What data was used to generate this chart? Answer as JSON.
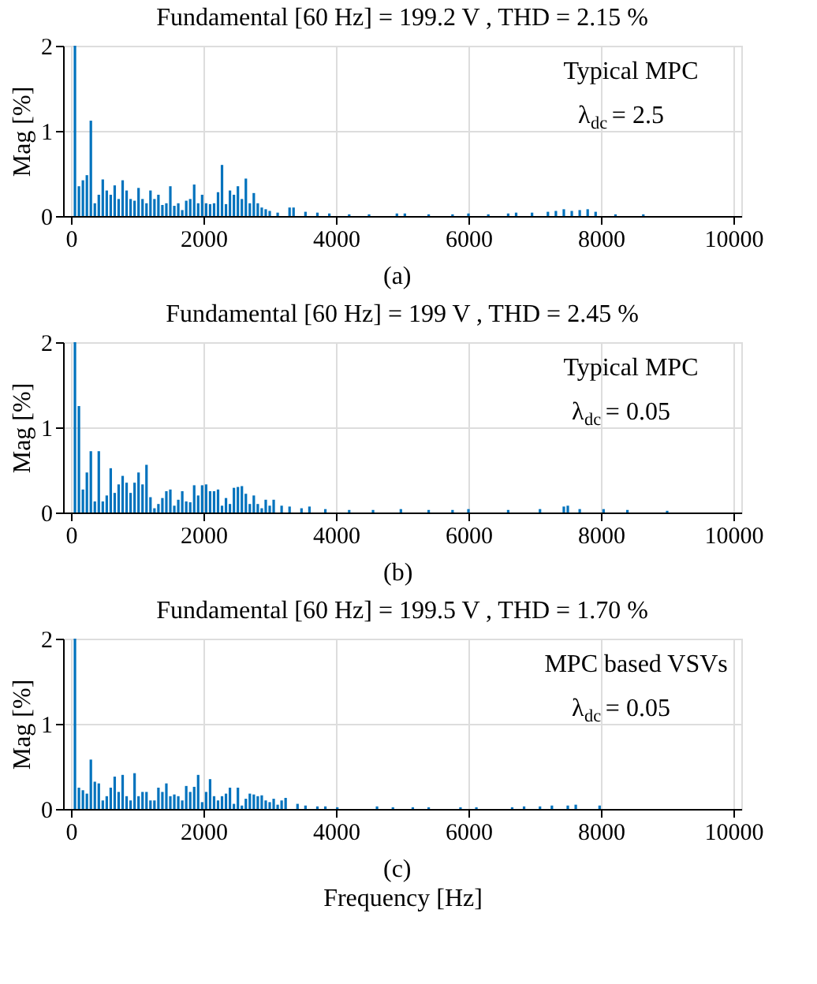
{
  "chart_data": [
    {
      "type": "bar",
      "title": "Fundamental [60 Hz] = 199.2 V , THD = 2.15 %",
      "ylabel": "Mag [%]",
      "annotations": [
        "Typical MPC",
        "λ$_{dc}$ = 2.5",
        "(a)"
      ],
      "color": "#0072bd",
      "grid": true,
      "xlim": [
        0,
        10000
      ],
      "xticks": [
        0,
        2000,
        4000,
        6000,
        8000,
        10000
      ],
      "ylim": [
        0,
        2
      ],
      "yticks": [
        0,
        1,
        2
      ],
      "x": [
        60,
        120,
        180,
        240,
        300,
        360,
        420,
        480,
        540,
        600,
        660,
        720,
        780,
        840,
        900,
        960,
        1020,
        1080,
        1140,
        1200,
        1260,
        1320,
        1380,
        1440,
        1500,
        1560,
        1620,
        1680,
        1740,
        1800,
        1860,
        1920,
        1980,
        2040,
        2100,
        2160,
        2220,
        2280,
        2340,
        2400,
        2460,
        2520,
        2580,
        2640,
        2700,
        2760,
        2820,
        2880,
        2940,
        3000,
        3120,
        3300,
        3360,
        3540,
        3720,
        3900,
        4200,
        4500,
        4920,
        5040,
        5400,
        5760,
        6000,
        6300,
        6600,
        6720,
        6960,
        7200,
        7320,
        7440,
        7560,
        7680,
        7800,
        7920,
        8220,
        8640
      ],
      "values": [
        2,
        0.35,
        0.42,
        0.48,
        1.12,
        0.15,
        0.25,
        0.43,
        0.3,
        0.25,
        0.36,
        0.2,
        0.42,
        0.3,
        0.2,
        0.18,
        0.33,
        0.2,
        0.15,
        0.3,
        0.2,
        0.25,
        0.13,
        0.15,
        0.35,
        0.12,
        0.15,
        0.07,
        0.18,
        0.2,
        0.37,
        0.15,
        0.25,
        0.15,
        0.14,
        0.15,
        0.28,
        0.6,
        0.14,
        0.3,
        0.25,
        0.35,
        0.2,
        0.44,
        0.15,
        0.27,
        0.15,
        0.1,
        0.08,
        0.06,
        0.04,
        0.1,
        0.1,
        0.05,
        0.04,
        0.03,
        0.02,
        0.02,
        0.03,
        0.03,
        0.02,
        0.02,
        0.03,
        0.02,
        0.03,
        0.04,
        0.04,
        0.05,
        0.06,
        0.08,
        0.06,
        0.07,
        0.08,
        0.05,
        0.02,
        0.02
      ]
    },
    {
      "type": "bar",
      "title": "Fundamental [60 Hz] = 199 V , THD = 2.45 %",
      "ylabel": "Mag [%]",
      "annotations": [
        "Typical MPC",
        "λ$_{dc}$ = 0.05",
        "(b)"
      ],
      "color": "#0072bd",
      "grid": true,
      "xlim": [
        0,
        10000
      ],
      "xticks": [
        0,
        2000,
        4000,
        6000,
        8000,
        10000
      ],
      "ylim": [
        0,
        2
      ],
      "yticks": [
        0,
        1,
        2
      ],
      "x": [
        60,
        120,
        180,
        240,
        300,
        360,
        420,
        480,
        540,
        600,
        660,
        720,
        780,
        840,
        900,
        960,
        1020,
        1080,
        1140,
        1200,
        1260,
        1320,
        1380,
        1440,
        1500,
        1560,
        1620,
        1680,
        1740,
        1800,
        1860,
        1920,
        1980,
        2040,
        2100,
        2160,
        2220,
        2280,
        2340,
        2400,
        2460,
        2520,
        2580,
        2640,
        2700,
        2760,
        2820,
        2880,
        2940,
        3000,
        3060,
        3180,
        3300,
        3480,
        3600,
        3840,
        4200,
        4560,
        4980,
        5400,
        5760,
        6000,
        6600,
        7080,
        7440,
        7500,
        7680,
        8040,
        8400,
        9000
      ],
      "values": [
        2,
        1.25,
        0.27,
        0.47,
        0.72,
        0.13,
        0.72,
        0.13,
        0.2,
        0.52,
        0.23,
        0.33,
        0.43,
        0.35,
        0.23,
        0.35,
        0.47,
        0.33,
        0.56,
        0.18,
        0.05,
        0.1,
        0.17,
        0.25,
        0.27,
        0.08,
        0.15,
        0.25,
        0.13,
        0.12,
        0.32,
        0.2,
        0.32,
        0.33,
        0.25,
        0.25,
        0.27,
        0.08,
        0.17,
        0.1,
        0.29,
        0.3,
        0.31,
        0.22,
        0.1,
        0.2,
        0.1,
        0.05,
        0.15,
        0.08,
        0.15,
        0.08,
        0.07,
        0.05,
        0.07,
        0.04,
        0.03,
        0.03,
        0.04,
        0.03,
        0.03,
        0.04,
        0.03,
        0.04,
        0.07,
        0.08,
        0.04,
        0.04,
        0.03,
        0.02
      ]
    },
    {
      "type": "bar",
      "title": "Fundamental [60 Hz] = 199.5 V , THD = 1.70 %",
      "xlabel": "Frequency [Hz]",
      "ylabel": "Mag [%]",
      "annotations": [
        "MPC based VSVs",
        "λ$_{dc}$ = 0.05",
        "(c)"
      ],
      "color": "#0072bd",
      "grid": true,
      "xlim": [
        0,
        10000
      ],
      "xticks": [
        0,
        2000,
        4000,
        6000,
        8000,
        10000
      ],
      "ylim": [
        0,
        2
      ],
      "yticks": [
        0,
        1,
        2
      ],
      "x": [
        60,
        120,
        180,
        240,
        300,
        360,
        420,
        480,
        540,
        600,
        660,
        720,
        780,
        840,
        900,
        960,
        1020,
        1080,
        1140,
        1200,
        1260,
        1320,
        1380,
        1440,
        1500,
        1560,
        1620,
        1680,
        1740,
        1800,
        1860,
        1920,
        1980,
        2040,
        2100,
        2160,
        2220,
        2280,
        2340,
        2400,
        2460,
        2520,
        2580,
        2640,
        2700,
        2760,
        2820,
        2880,
        2940,
        3000,
        3060,
        3120,
        3180,
        3240,
        3420,
        3540,
        3720,
        3840,
        4020,
        4620,
        4860,
        5160,
        5400,
        5880,
        6120,
        6660,
        6840,
        7080,
        7260,
        7500,
        7620,
        7980
      ],
      "values": [
        2,
        0.25,
        0.22,
        0.18,
        0.58,
        0.32,
        0.3,
        0.1,
        0.15,
        0.25,
        0.38,
        0.2,
        0.4,
        0.15,
        0.1,
        0.42,
        0.15,
        0.2,
        0.2,
        0.1,
        0.1,
        0.25,
        0.2,
        0.3,
        0.15,
        0.17,
        0.15,
        0.1,
        0.27,
        0.2,
        0.26,
        0.4,
        0.08,
        0.2,
        0.35,
        0.15,
        0.1,
        0.15,
        0.18,
        0.25,
        0.06,
        0.25,
        0.04,
        0.12,
        0.18,
        0.17,
        0.15,
        0.16,
        0.1,
        0.08,
        0.12,
        0.05,
        0.1,
        0.13,
        0.06,
        0.04,
        0.03,
        0.03,
        0.02,
        0.03,
        0.02,
        0.02,
        0.02,
        0.02,
        0.02,
        0.02,
        0.03,
        0.03,
        0.04,
        0.04,
        0.05,
        0.04
      ]
    }
  ]
}
